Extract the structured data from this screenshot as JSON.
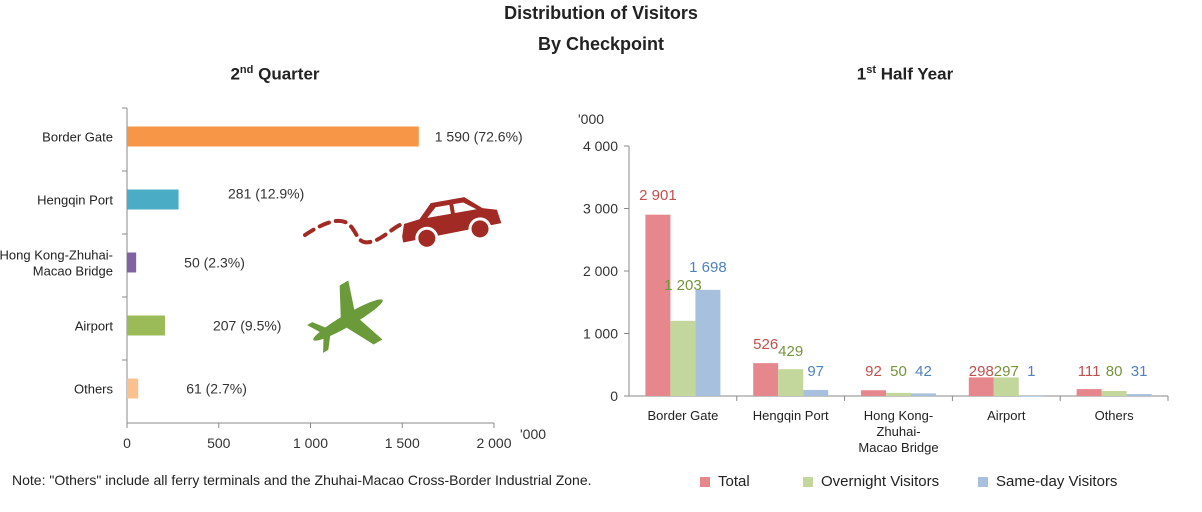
{
  "header": {
    "title_line1": "Distribution of Visitors",
    "title_line2": "By Checkpoint"
  },
  "note": "Note: \"Others\" include all ferry terminals and the Zhuhai-Macao Cross-Border Industrial Zone.",
  "icons": {
    "car": "car-icon",
    "plane": "airplane-icon"
  },
  "chart_data": [
    {
      "type": "bar",
      "orientation": "horizontal",
      "title": "Quarter",
      "title_prefix": "2",
      "title_sup": "nd",
      "xlabel": "'000",
      "xlim": [
        0,
        2000
      ],
      "xticks": [
        "0",
        "500",
        "1 000",
        "1 500",
        "2 000"
      ],
      "categories": [
        [
          "Border Gate"
        ],
        [
          "Hengqin Port"
        ],
        [
          "Hong Kong-Zhuhai-",
          "Macao Bridge"
        ],
        [
          "Airport"
        ],
        [
          "Others"
        ]
      ],
      "values": [
        1590,
        281,
        50,
        207,
        61
      ],
      "data_labels": [
        "1 590 (72.6%)",
        "281 (12.9%)",
        "50 (2.3%)",
        "207 (9.5%)",
        "61 (2.7%)"
      ],
      "colors": [
        "#f79646",
        "#4bacc6",
        "#8064a2",
        "#9bbb59",
        "#fac090"
      ]
    },
    {
      "type": "bar",
      "title": "Half Year",
      "title_prefix": "1",
      "title_sup": "st",
      "ylabel": "'000",
      "ylim": [
        0,
        4000
      ],
      "yticks": [
        "0",
        "1 000",
        "2 000",
        "3 000",
        "4 000"
      ],
      "categories": [
        [
          "Border Gate"
        ],
        [
          "Hengqin Port"
        ],
        [
          "Hong Kong-",
          "Zhuhai-",
          "Macao Bridge"
        ],
        [
          "Airport"
        ],
        [
          "Others"
        ]
      ],
      "series": [
        {
          "name": "Total",
          "color": "#e6878d",
          "label_color": "#c0504d",
          "values": [
            2901,
            526,
            92,
            298,
            111
          ],
          "labels": [
            "2 901",
            "526",
            "92",
            "298",
            "111"
          ]
        },
        {
          "name": "Overnight Visitors",
          "color": "#c3d69b",
          "label_color": "#77933c",
          "values": [
            1203,
            429,
            50,
            297,
            80
          ],
          "labels": [
            "1 203",
            "429",
            "50",
            "297",
            "80"
          ]
        },
        {
          "name": "Same-day Visitors",
          "color": "#a7c0de",
          "label_color": "#4f81bd",
          "values": [
            1698,
            97,
            42,
            1,
            31
          ],
          "labels": [
            "1 698",
            "97",
            "42",
            "1",
            "31"
          ]
        }
      ],
      "legend_position": "bottom"
    }
  ]
}
